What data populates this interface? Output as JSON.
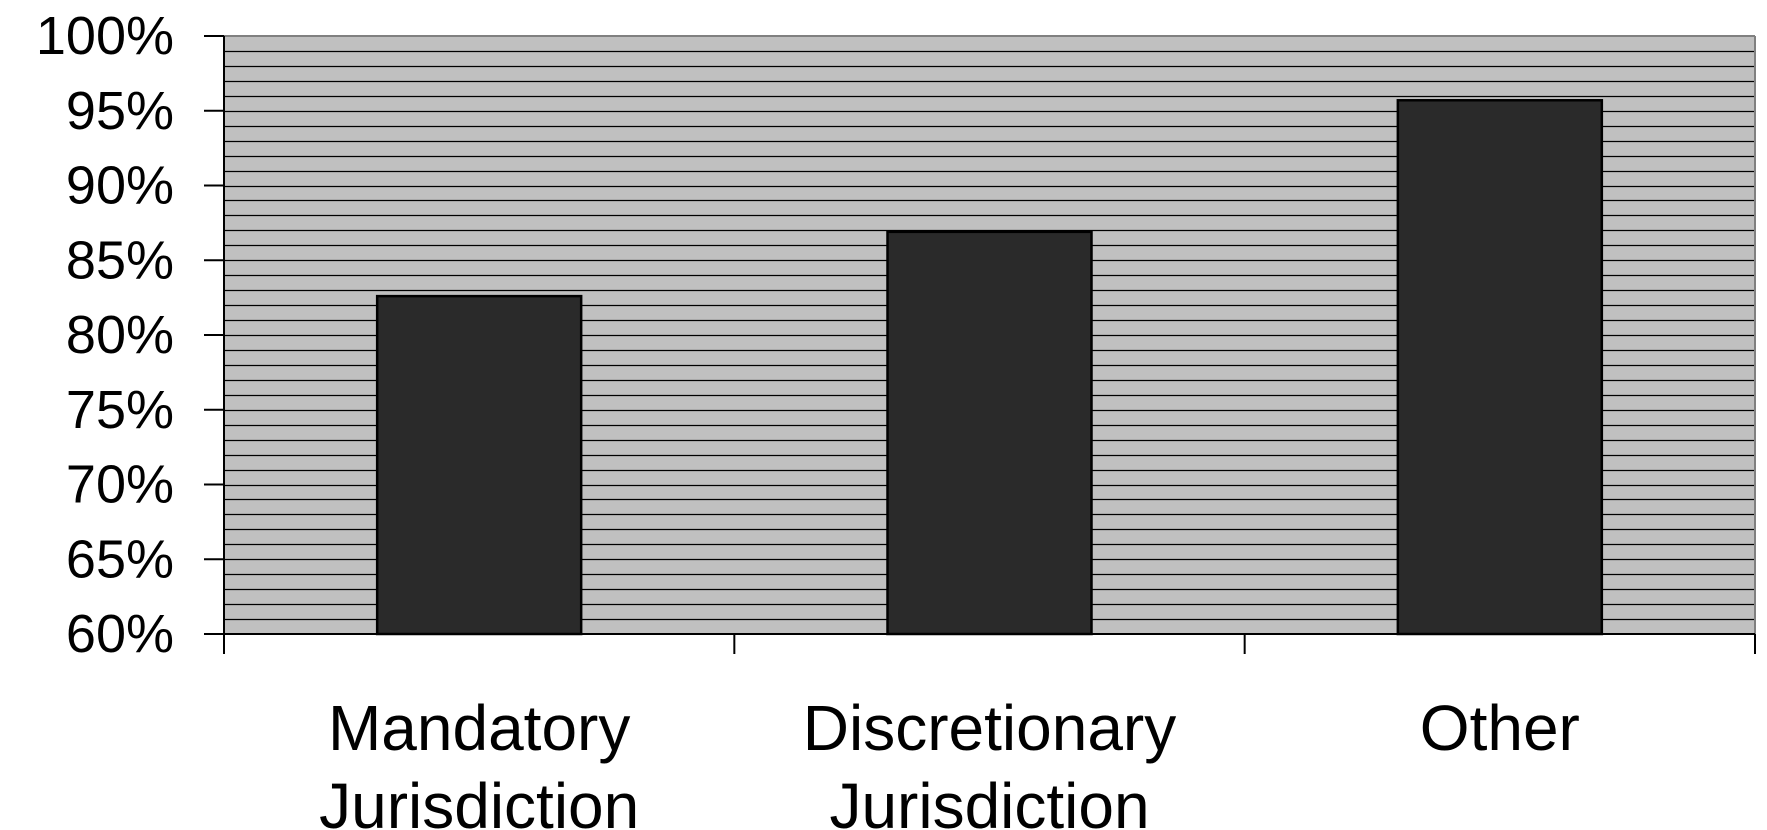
{
  "chart_data": {
    "type": "bar",
    "categories": [
      [
        "Mandatory",
        "Jurisdiction"
      ],
      [
        "Discretionary",
        "Jurisdiction"
      ],
      [
        "Other"
      ]
    ],
    "values": [
      82.6,
      86.9,
      95.7
    ],
    "ylim": [
      60,
      100
    ],
    "y_ticks": [
      60,
      65,
      70,
      75,
      80,
      85,
      90,
      95,
      100
    ],
    "y_tick_labels": [
      "60%",
      "65%",
      "70%",
      "75%",
      "80%",
      "85%",
      "90%",
      "95%",
      "100%"
    ],
    "grid": true,
    "title": "",
    "xlabel": "",
    "ylabel": ""
  },
  "colors": {
    "plot_background": "#c0c0c0",
    "gridline": "#000000",
    "bar_fill": "#2a2a2a",
    "bar_stroke": "#000000",
    "axis": "#000000",
    "frame": "#808080"
  }
}
